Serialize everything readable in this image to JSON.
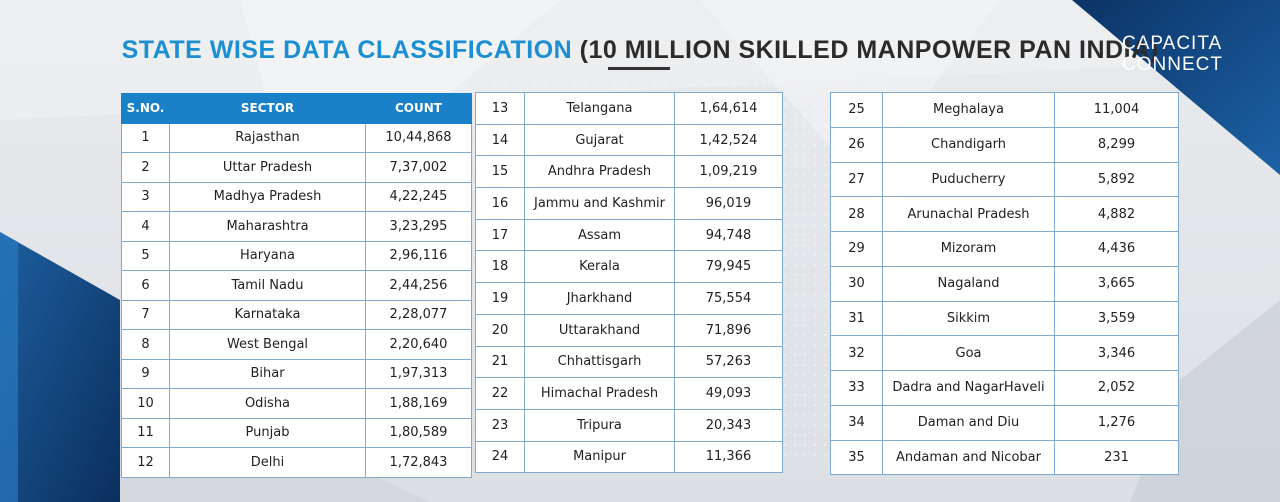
{
  "header": {
    "title_part1": "STATE WISE DATA CLASSIFICATION",
    "title_part2": "(10 MILLION SKILLED MANPOWER PAN INDIA)",
    "brand_line1": "CAPACITA",
    "brand_line2": "CONNECT"
  },
  "columns": {
    "sno": "S.NO.",
    "sector": "SECTOR",
    "count": "COUNT"
  },
  "rows": [
    {
      "sno": "1",
      "sector": "Rajasthan",
      "count": "10,44,868"
    },
    {
      "sno": "2",
      "sector": "Uttar Pradesh",
      "count": "7,37,002"
    },
    {
      "sno": "3",
      "sector": "Madhya Pradesh",
      "count": "4,22,245"
    },
    {
      "sno": "4",
      "sector": "Maharashtra",
      "count": "3,23,295"
    },
    {
      "sno": "5",
      "sector": "Haryana",
      "count": "2,96,116"
    },
    {
      "sno": "6",
      "sector": "Tamil Nadu",
      "count": "2,44,256"
    },
    {
      "sno": "7",
      "sector": "Karnataka",
      "count": "2,28,077"
    },
    {
      "sno": "8",
      "sector": "West Bengal",
      "count": "2,20,640"
    },
    {
      "sno": "9",
      "sector": "Bihar",
      "count": "1,97,313"
    },
    {
      "sno": "10",
      "sector": "Odisha",
      "count": "1,88,169"
    },
    {
      "sno": "11",
      "sector": "Punjab",
      "count": "1,80,589"
    },
    {
      "sno": "12",
      "sector": "Delhi",
      "count": "1,72,843"
    },
    {
      "sno": "13",
      "sector": "Telangana",
      "count": "1,64,614"
    },
    {
      "sno": "14",
      "sector": "Gujarat",
      "count": "1,42,524"
    },
    {
      "sno": "15",
      "sector": "Andhra Pradesh",
      "count": "1,09,219"
    },
    {
      "sno": "16",
      "sector": "Jammu and Kashmir",
      "count": "96,019"
    },
    {
      "sno": "17",
      "sector": "Assam",
      "count": "94,748"
    },
    {
      "sno": "18",
      "sector": "Kerala",
      "count": "79,945"
    },
    {
      "sno": "19",
      "sector": "Jharkhand",
      "count": "75,554"
    },
    {
      "sno": "20",
      "sector": "Uttarakhand",
      "count": "71,896"
    },
    {
      "sno": "21",
      "sector": "Chhattisgarh",
      "count": "57,263"
    },
    {
      "sno": "22",
      "sector": "Himachal Pradesh",
      "count": "49,093"
    },
    {
      "sno": "23",
      "sector": "Tripura",
      "count": "20,343"
    },
    {
      "sno": "24",
      "sector": "Manipur",
      "count": "11,366"
    },
    {
      "sno": "25",
      "sector": "Meghalaya",
      "count": "11,004"
    },
    {
      "sno": "26",
      "sector": "Chandigarh",
      "count": "8,299"
    },
    {
      "sno": "27",
      "sector": "Puducherry",
      "count": "5,892"
    },
    {
      "sno": "28",
      "sector": "Arunachal Pradesh",
      "count": "4,882"
    },
    {
      "sno": "29",
      "sector": "Mizoram",
      "count": "4,436"
    },
    {
      "sno": "30",
      "sector": "Nagaland",
      "count": "3,665"
    },
    {
      "sno": "31",
      "sector": "Sikkim",
      "count": "3,559"
    },
    {
      "sno": "32",
      "sector": "Goa",
      "count": "3,346"
    },
    {
      "sno": "33",
      "sector": "Dadra and NagarHaveli",
      "count": "2,052"
    },
    {
      "sno": "34",
      "sector": "Daman and Diu",
      "count": "1,276"
    },
    {
      "sno": "35",
      "sector": "Andaman and Nicobar",
      "count": "231"
    }
  ],
  "colors": {
    "title_blue": "#1c8fd2",
    "header_blue": "#1a80c7",
    "navy": "#0d3f77"
  }
}
